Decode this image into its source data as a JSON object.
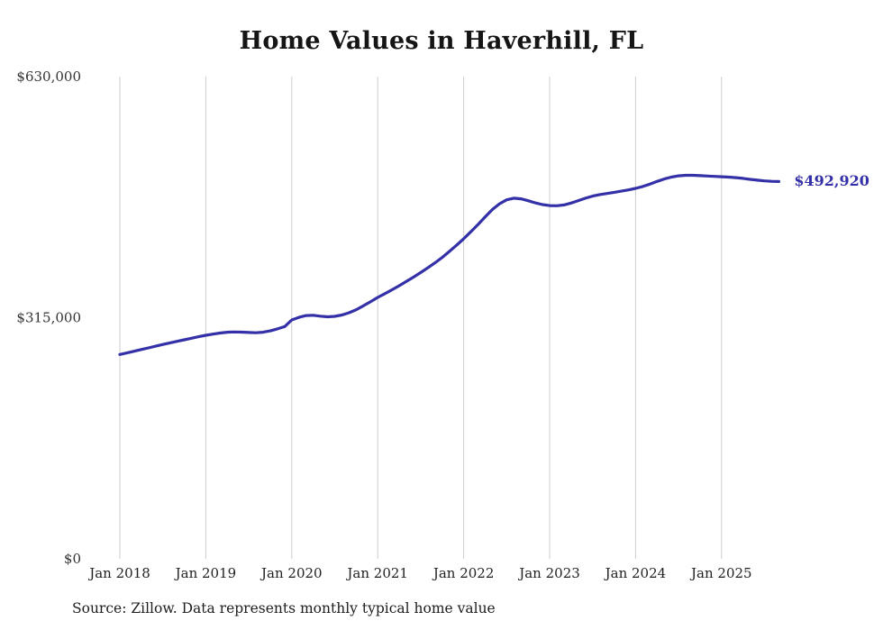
{
  "page": {
    "background": "#ffffff"
  },
  "header": {
    "title": "Home Values in Haverhill, FL"
  },
  "footer": {
    "source": "Source: Zillow. Data represents monthly typical home value"
  },
  "chart_data": {
    "type": "line",
    "title": "Home Values in Haverhill, FL",
    "xlabel": "",
    "ylabel": "",
    "ylim": [
      0,
      630000
    ],
    "y_ticks": [
      0,
      315000,
      630000
    ],
    "y_tick_labels": [
      "$0",
      "$315,000",
      "$630,000"
    ],
    "x_tick_labels": [
      "Jan 2018",
      "Jan 2019",
      "Jan 2020",
      "Jan 2021",
      "Jan 2022",
      "Jan 2023",
      "Jan 2024",
      "Jan 2025"
    ],
    "grid": "vertical annual gridlines only",
    "legend": "none",
    "line_color": "#3431a8",
    "gridline_color": "#cccccc",
    "end_label": "$492,920",
    "frequency": "monthly",
    "x_start_month": "2018-01",
    "x_end_month": "2025-09",
    "values": [
      267000,
      269000,
      271200,
      273400,
      275600,
      277800,
      280000,
      282100,
      284100,
      286100,
      288100,
      290100,
      292000,
      293600,
      295000,
      296000,
      296400,
      296200,
      295700,
      295300,
      296000,
      297800,
      300400,
      303300,
      312000,
      315500,
      317800,
      318200,
      317000,
      316200,
      316800,
      318500,
      321500,
      325500,
      330500,
      336000,
      341500,
      346500,
      351500,
      356800,
      362300,
      368000,
      374000,
      380200,
      386700,
      393800,
      401500,
      409700,
      418200,
      427200,
      436800,
      446800,
      456300,
      463800,
      469000,
      471200,
      470300,
      467800,
      465000,
      462800,
      461500,
      461200,
      462300,
      464800,
      468000,
      471200,
      473800,
      475800,
      477300,
      478800,
      480300,
      482000,
      484000,
      486500,
      489500,
      493000,
      496200,
      498700,
      500300,
      501000,
      501000,
      500600,
      500100,
      499600,
      499200,
      498700,
      498000,
      497000,
      495800,
      494700,
      493800,
      493200,
      492920
    ]
  }
}
